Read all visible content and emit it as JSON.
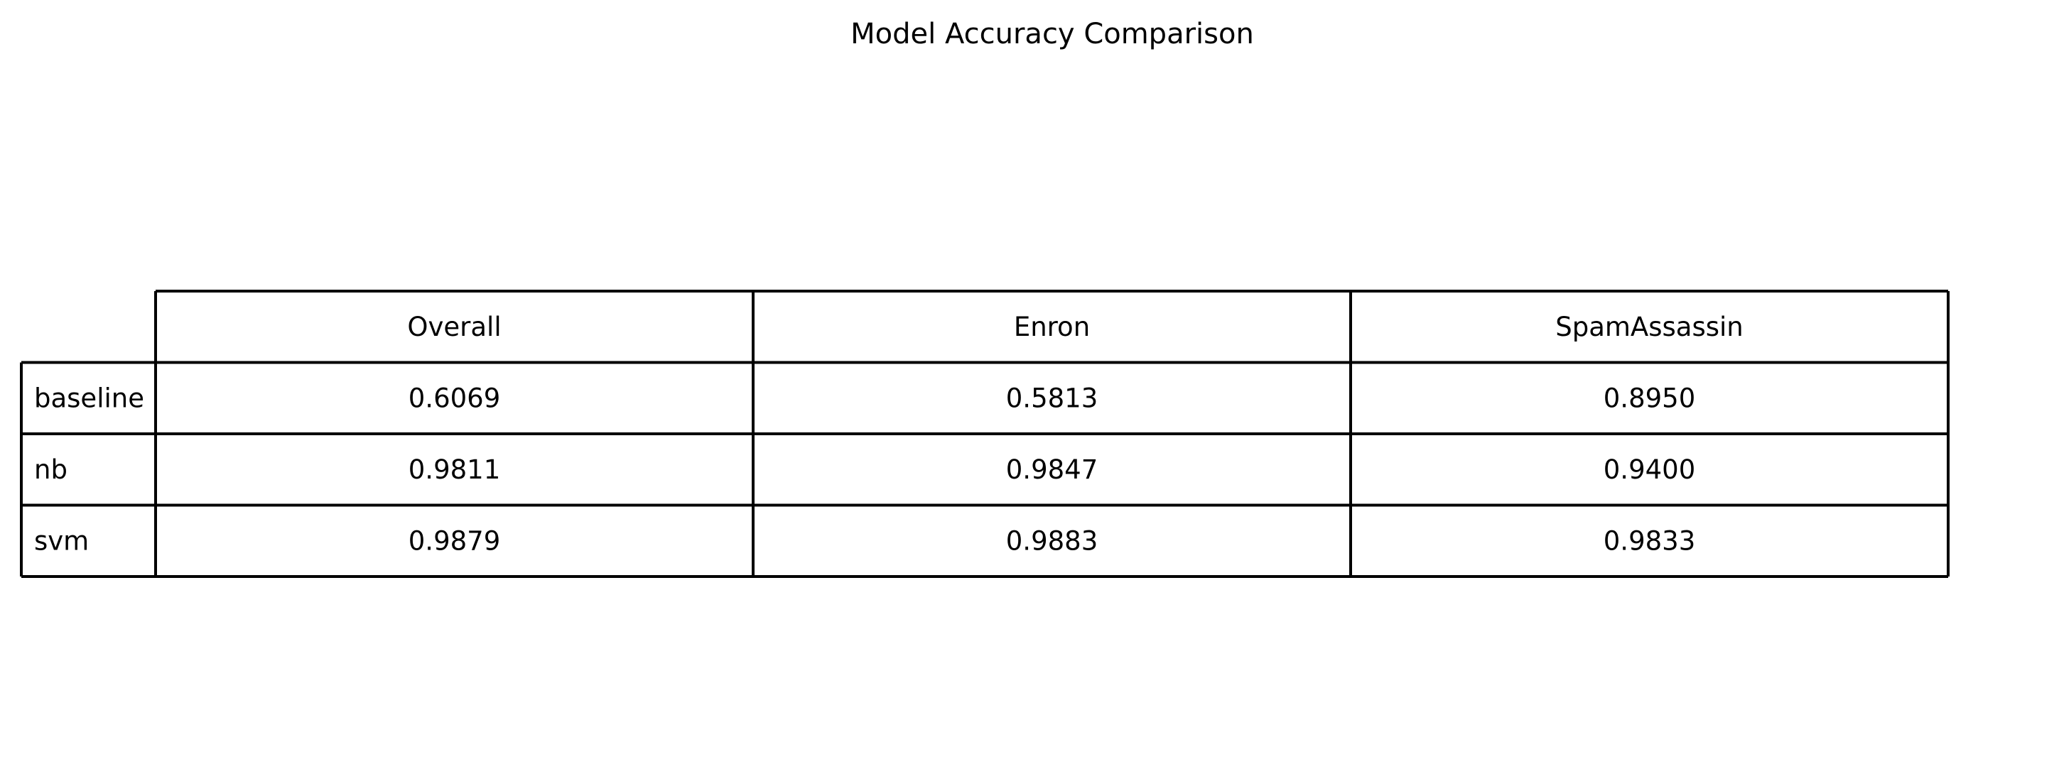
{
  "chart_data": {
    "type": "table",
    "title": "Model Accuracy Comparison",
    "columns": [
      "Overall",
      "Enron",
      "SpamAssassin"
    ],
    "rows": [
      {
        "label": "baseline",
        "values": [
          "0.6069",
          "0.5813",
          "0.8950"
        ]
      },
      {
        "label": "nb",
        "values": [
          "0.9811",
          "0.9847",
          "0.9400"
        ]
      },
      {
        "label": "svm",
        "values": [
          "0.9879",
          "0.9883",
          "0.9833"
        ]
      }
    ]
  }
}
